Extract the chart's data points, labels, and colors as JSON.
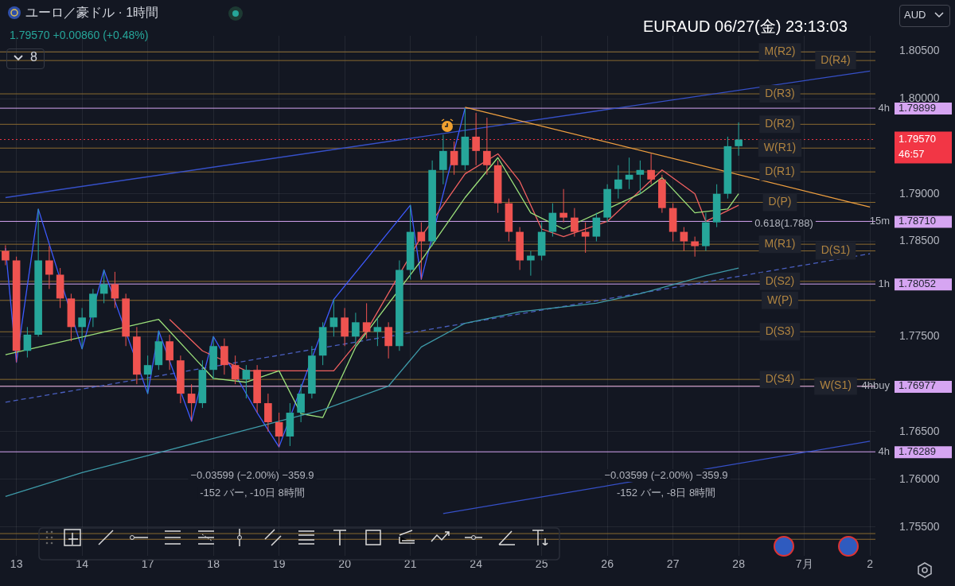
{
  "chart_data": {
    "type": "candlestick",
    "title": "ユーロ／豪ドル · 1時間",
    "subtitle": "1.79570 +0.00860 (+0.48%)",
    "categories": [
      null,
      "13",
      null,
      null,
      null,
      null,
      null,
      "14",
      null,
      null,
      null,
      null,
      null,
      "17",
      null,
      null,
      null,
      null,
      null,
      "18",
      null,
      null,
      null,
      null,
      null,
      "19",
      null,
      null,
      null,
      null,
      null,
      "20",
      null,
      null,
      null,
      null,
      null,
      "21",
      null,
      null,
      null,
      null,
      null,
      "24",
      null,
      null,
      null,
      null,
      null,
      "25",
      null,
      null,
      null,
      null,
      null,
      "26",
      null,
      null,
      null,
      null,
      null,
      "27",
      null,
      null,
      null,
      null,
      null,
      "28",
      null,
      null,
      null,
      null,
      null,
      "7月",
      null,
      null,
      null,
      null,
      null,
      "2"
    ],
    "ohlc": [
      [
        1.784,
        1.7846,
        1.7825,
        1.783
      ],
      [
        1.783,
        1.7834,
        1.7723,
        1.7735
      ],
      [
        1.7735,
        1.776,
        1.7728,
        1.7752
      ],
      [
        1.7752,
        1.7884,
        1.775,
        1.783
      ],
      [
        1.783,
        1.7845,
        1.78,
        1.7815
      ],
      [
        1.7815,
        1.7822,
        1.778,
        1.779
      ],
      [
        1.779,
        1.7795,
        1.7745,
        1.776
      ],
      [
        1.776,
        1.778,
        1.7737,
        1.777
      ],
      [
        1.777,
        1.78,
        1.776,
        1.7795
      ],
      [
        1.7795,
        1.782,
        1.7785,
        1.7805
      ],
      [
        1.7805,
        1.7818,
        1.778,
        1.779
      ],
      [
        1.779,
        1.7795,
        1.774,
        1.775
      ],
      [
        1.775,
        1.776,
        1.77,
        1.771
      ],
      [
        1.771,
        1.773,
        1.769,
        1.772
      ],
      [
        1.772,
        1.7756,
        1.7715,
        1.7745
      ],
      [
        1.7745,
        1.7752,
        1.7715,
        1.7725
      ],
      [
        1.7725,
        1.773,
        1.768,
        1.769
      ],
      [
        1.769,
        1.77,
        1.7661,
        1.768
      ],
      [
        1.768,
        1.7725,
        1.7675,
        1.7715
      ],
      [
        1.7715,
        1.775,
        1.7705,
        1.774
      ],
      [
        1.774,
        1.7748,
        1.771,
        1.772
      ],
      [
        1.772,
        1.773,
        1.77,
        1.7705
      ],
      [
        1.7705,
        1.772,
        1.7685,
        1.7715
      ],
      [
        1.7715,
        1.772,
        1.767,
        1.768
      ],
      [
        1.768,
        1.769,
        1.765,
        1.766
      ],
      [
        1.766,
        1.767,
        1.7634,
        1.7645
      ],
      [
        1.7645,
        1.768,
        1.7635,
        1.767
      ],
      [
        1.767,
        1.77,
        1.766,
        1.769
      ],
      [
        1.769,
        1.774,
        1.7685,
        1.773
      ],
      [
        1.773,
        1.7765,
        1.772,
        1.776
      ],
      [
        1.776,
        1.7789,
        1.775,
        1.777
      ],
      [
        1.777,
        1.778,
        1.774,
        1.775
      ],
      [
        1.775,
        1.7775,
        1.774,
        1.7765
      ],
      [
        1.7765,
        1.7785,
        1.7748,
        1.7755
      ],
      [
        1.7755,
        1.777,
        1.774,
        1.776
      ],
      [
        1.776,
        1.7765,
        1.7727,
        1.774
      ],
      [
        1.774,
        1.783,
        1.7735,
        1.782
      ],
      [
        1.782,
        1.7888,
        1.781,
        1.786
      ],
      [
        1.786,
        1.787,
        1.781,
        1.785
      ],
      [
        1.785,
        1.7935,
        1.7845,
        1.7925
      ],
      [
        1.7925,
        1.7962,
        1.791,
        1.7945
      ],
      [
        1.7945,
        1.7955,
        1.792,
        1.793
      ],
      [
        1.793,
        1.799,
        1.7925,
        1.796
      ],
      [
        1.796,
        1.7985,
        1.793,
        1.7945
      ],
      [
        1.7945,
        1.798,
        1.792,
        1.793
      ],
      [
        1.793,
        1.7935,
        1.788,
        1.789
      ],
      [
        1.789,
        1.7895,
        1.785,
        1.786
      ],
      [
        1.786,
        1.7865,
        1.782,
        1.783
      ],
      [
        1.783,
        1.784,
        1.7814,
        1.7835
      ],
      [
        1.7835,
        1.787,
        1.783,
        1.786
      ],
      [
        1.786,
        1.789,
        1.7855,
        1.788
      ],
      [
        1.788,
        1.7905,
        1.787,
        1.7875
      ],
      [
        1.7875,
        1.7885,
        1.7855,
        1.786
      ],
      [
        1.786,
        1.787,
        1.7838,
        1.7855
      ],
      [
        1.7855,
        1.788,
        1.785,
        1.7875
      ],
      [
        1.7875,
        1.791,
        1.787,
        1.7905
      ],
      [
        1.7905,
        1.793,
        1.7895,
        1.7915
      ],
      [
        1.7915,
        1.7938,
        1.7905,
        1.792
      ],
      [
        1.792,
        1.7935,
        1.79,
        1.7925
      ],
      [
        1.7925,
        1.7942,
        1.791,
        1.7915
      ],
      [
        1.7915,
        1.792,
        1.788,
        1.7885
      ],
      [
        1.7885,
        1.789,
        1.785,
        1.786
      ],
      [
        1.786,
        1.7865,
        1.784,
        1.785
      ],
      [
        1.785,
        1.7855,
        1.7834,
        1.7845
      ],
      [
        1.7845,
        1.788,
        1.784,
        1.787
      ],
      [
        1.787,
        1.791,
        1.7865,
        1.79
      ],
      [
        1.79,
        1.796,
        1.7895,
        1.795
      ],
      [
        1.795,
        1.7975,
        1.794,
        1.7957
      ],
      null,
      null,
      null,
      null,
      null,
      null,
      null,
      null,
      null,
      null,
      null,
      null
    ],
    "colors": [
      "#ef5350",
      "#ef5350",
      "#26a69a",
      "#26a69a",
      "#ef5350",
      "#ef5350",
      "#ef5350",
      "#26a69a",
      "#26a69a",
      "#26a69a",
      "#ef5350",
      "#ef5350",
      "#ef5350",
      "#26a69a",
      "#26a69a",
      "#ef5350",
      "#ef5350",
      "#ef5350",
      "#26a69a",
      "#26a69a",
      "#ef5350",
      "#ef5350",
      "#26a69a",
      "#ef5350",
      "#ef5350",
      "#ef5350",
      "#26a69a",
      "#26a69a",
      "#26a69a",
      "#26a69a",
      "#26a69a",
      "#ef5350",
      "#26a69a",
      "#ef5350",
      "#26a69a",
      "#ef5350",
      "#26a69a",
      "#26a69a",
      "#ef5350",
      "#26a69a",
      "#26a69a",
      "#ef5350",
      "#26a69a",
      "#ef5350",
      "#ef5350",
      "#ef5350",
      "#ef5350",
      "#ef5350",
      "#26a69a",
      "#26a69a",
      "#26a69a",
      "#ef5350",
      "#ef5350",
      "#ef5350",
      "#26a69a",
      "#26a69a",
      "#26a69a",
      "#26a69a",
      "#26a69a",
      "#ef5350",
      "#ef5350",
      "#ef5350",
      "#ef5350",
      "#ef5350",
      "#26a69a",
      "#26a69a",
      "#26a69a",
      "#26a69a",
      null,
      null,
      null,
      null,
      null,
      null,
      null,
      null,
      null,
      null,
      null,
      null
    ],
    "series": [
      {
        "type": "line",
        "color": "#3e9aa8",
        "values": [
          1.7582,
          null,
          null,
          null,
          null,
          null,
          null,
          1.7607,
          null,
          null,
          null,
          null,
          null,
          null,
          1.7628,
          null,
          null,
          null,
          null,
          null,
          null,
          null,
          1.7652,
          null,
          null,
          null,
          null,
          null,
          null,
          1.7673,
          null,
          null,
          null,
          null,
          null,
          1.7698,
          null,
          null,
          1.7739,
          null,
          null,
          null,
          1.7764,
          null,
          null,
          null,
          null,
          1.7776,
          null,
          null,
          null,
          null,
          null,
          null,
          1.7785,
          null,
          null,
          null,
          1.7795,
          null,
          null,
          null,
          null,
          null,
          1.7814,
          null,
          null,
          1.7822,
          null,
          null,
          null,
          null,
          null,
          null,
          null,
          null,
          null,
          null,
          null,
          null
        ]
      },
      {
        "type": "line",
        "color": "#9be07a",
        "values": [
          1.7731,
          null,
          null,
          null,
          null,
          null,
          null,
          null,
          null,
          null,
          null,
          null,
          null,
          null,
          1.7768,
          null,
          null,
          null,
          null,
          1.7706,
          null,
          null,
          1.7702,
          null,
          null,
          1.7714,
          null,
          1.7669,
          null,
          1.7665,
          null,
          null,
          1.7739,
          null,
          null,
          null,
          null,
          null,
          1.783,
          null,
          null,
          null,
          1.7896,
          null,
          null,
          1.7938,
          null,
          null,
          1.788,
          null,
          null,
          1.7863,
          null,
          null,
          null,
          null,
          null,
          null,
          1.79,
          null,
          1.7917,
          null,
          null,
          1.788,
          null,
          null,
          1.7884,
          1.79,
          null,
          null,
          null,
          null,
          null,
          null,
          null,
          null,
          null,
          null,
          null,
          null
        ]
      },
      {
        "type": "line",
        "color": "#f06060",
        "values": [
          null,
          null,
          null,
          null,
          null,
          null,
          null,
          null,
          null,
          null,
          null,
          null,
          null,
          null,
          null,
          1.7768,
          null,
          null,
          1.7735,
          null,
          null,
          null,
          1.7714,
          null,
          1.7714,
          null,
          null,
          null,
          null,
          null,
          1.7714,
          null,
          null,
          1.7756,
          null,
          null,
          null,
          null,
          1.7855,
          null,
          null,
          null,
          1.7921,
          null,
          null,
          1.7942,
          null,
          1.7913,
          null,
          1.7863,
          null,
          1.7855,
          null,
          null,
          null,
          1.7871,
          null,
          null,
          null,
          null,
          1.7925,
          null,
          null,
          1.79,
          1.7871,
          null,
          null,
          1.7888,
          null,
          null,
          null,
          null,
          null,
          null,
          null,
          null,
          null,
          null,
          null,
          null
        ]
      },
      {
        "type": "line",
        "color": "#3d5afe",
        "values": [
          1.7843,
          1.7723,
          null,
          1.7884,
          null,
          null,
          null,
          1.7737,
          null,
          1.782,
          null,
          null,
          null,
          1.769,
          1.7756,
          null,
          null,
          1.7661,
          null,
          1.775,
          null,
          null,
          null,
          1.767,
          null,
          1.7634,
          null,
          null,
          null,
          null,
          1.7789,
          null,
          null,
          null,
          null,
          null,
          null,
          1.7888,
          1.781,
          null,
          null,
          null,
          1.799,
          null,
          null,
          null,
          null,
          null,
          null,
          null,
          null,
          null,
          null,
          null,
          null,
          null,
          null,
          null,
          null,
          null,
          null,
          null,
          null,
          null,
          null,
          null,
          null,
          null,
          null,
          null,
          null,
          null,
          null,
          null,
          null,
          null,
          null,
          null,
          null,
          null
        ]
      },
      {
        "type": "line",
        "color": "#f0a040",
        "values": [
          null,
          null,
          null,
          null,
          null,
          null,
          null,
          null,
          null,
          null,
          null,
          null,
          null,
          null,
          null,
          null,
          null,
          null,
          null,
          null,
          null,
          null,
          null,
          null,
          null,
          null,
          null,
          null,
          null,
          null,
          null,
          null,
          null,
          null,
          null,
          null,
          null,
          null,
          null,
          null,
          null,
          null,
          1.7991,
          null,
          null,
          null,
          null,
          null,
          null,
          null,
          null,
          null,
          null,
          null,
          null,
          null,
          null,
          null,
          null,
          null,
          null,
          null,
          null,
          null,
          null,
          null,
          null,
          null,
          null,
          null,
          null,
          null,
          null,
          null,
          null,
          null,
          null,
          null,
          null,
          1.7886
        ]
      },
      {
        "type": "line",
        "color": "#3650c8",
        "values": [
          1.7896,
          null,
          null,
          null,
          null,
          null,
          null,
          null,
          null,
          null,
          null,
          null,
          null,
          null,
          null,
          null,
          null,
          null,
          null,
          null,
          null,
          null,
          null,
          null,
          null,
          null,
          null,
          null,
          null,
          null,
          null,
          null,
          null,
          null,
          null,
          null,
          null,
          null,
          null,
          null,
          null,
          null,
          null,
          null,
          null,
          null,
          null,
          null,
          null,
          null,
          null,
          null,
          null,
          null,
          null,
          null,
          null,
          null,
          null,
          null,
          null,
          null,
          null,
          null,
          null,
          null,
          null,
          null,
          null,
          null,
          null,
          null,
          null,
          null,
          null,
          null,
          null,
          null,
          null,
          1.8029
        ]
      },
      {
        "type": "line",
        "color": "#3650c8",
        "values": [
          null,
          null,
          null,
          null,
          null,
          null,
          null,
          null,
          null,
          null,
          null,
          null,
          null,
          null,
          null,
          null,
          null,
          null,
          null,
          null,
          null,
          null,
          null,
          null,
          null,
          null,
          null,
          null,
          null,
          null,
          null,
          null,
          null,
          null,
          null,
          null,
          null,
          null,
          null,
          null,
          1.7564,
          null,
          null,
          null,
          null,
          null,
          null,
          null,
          null,
          null,
          null,
          null,
          null,
          null,
          null,
          null,
          null,
          null,
          null,
          null,
          null,
          null,
          null,
          null,
          null,
          null,
          null,
          null,
          null,
          null,
          null,
          null,
          null,
          null,
          null,
          null,
          null,
          null,
          null,
          1.764
        ]
      },
      {
        "type": "line",
        "color": "#4a5fc0",
        "line_style": "dashed",
        "values": [
          1.7681,
          null,
          null,
          null,
          null,
          null,
          null,
          null,
          null,
          null,
          null,
          null,
          null,
          null,
          null,
          null,
          null,
          null,
          null,
          null,
          null,
          null,
          null,
          null,
          null,
          null,
          null,
          null,
          null,
          null,
          null,
          null,
          null,
          null,
          null,
          null,
          null,
          null,
          null,
          null,
          null,
          null,
          null,
          null,
          null,
          null,
          null,
          null,
          null,
          null,
          null,
          null,
          null,
          null,
          null,
          null,
          null,
          null,
          null,
          null,
          null,
          null,
          null,
          null,
          null,
          null,
          null,
          null,
          null,
          null,
          null,
          null,
          null,
          null,
          null,
          null,
          null,
          null,
          null,
          1.7837
        ]
      }
    ],
    "ylim": [
      1.752,
      1.8066
    ],
    "yticks": [
      {
        "value": 1.755,
        "label": "1.75500"
      },
      {
        "value": 1.76,
        "label": "1.76000"
      },
      {
        "value": 1.765,
        "label": "1.76500"
      },
      {
        "value": 1.775,
        "label": "1.77500"
      },
      {
        "value": 1.785,
        "label": "1.78500"
      },
      {
        "value": 1.79,
        "label": "1.79000"
      },
      {
        "value": 1.8,
        "label": "1.80000"
      },
      {
        "value": 1.805,
        "label": "1.80500"
      }
    ],
    "grid": true,
    "marker": "none",
    "ref_lines": [
      {
        "axis": "y",
        "value": 1.8049,
        "label": "M(R2)",
        "color": "#8a6a30"
      },
      {
        "axis": "y",
        "value": 1.804,
        "label": "D(R4)",
        "color": "#8a6a30"
      },
      {
        "axis": "y",
        "value": 1.8005,
        "label": "D(R3)",
        "color": "#8a6a30"
      },
      {
        "axis": "y",
        "value": 1.7973,
        "label": "D(R2)",
        "color": "#8a6a30"
      },
      {
        "axis": "y",
        "value": 1.7948,
        "label": "W(R1)",
        "color": "#8a6a30"
      },
      {
        "axis": "y",
        "value": 1.7923,
        "label": "D(R1)",
        "color": "#8a6a30"
      },
      {
        "axis": "y",
        "value": 1.7891,
        "label": "D(P)",
        "color": "#8a6a30"
      },
      {
        "axis": "y",
        "value": 1.7847,
        "label": "M(R1)",
        "color": "#8a6a30"
      },
      {
        "axis": "y",
        "value": 1.784,
        "label": "D(S1)",
        "color": "#8a6a30"
      },
      {
        "axis": "y",
        "value": 1.7808,
        "label": "D(S2)",
        "color": "#8a6a30"
      },
      {
        "axis": "y",
        "value": 1.7788,
        "label": "W(P)",
        "color": "#8a6a30"
      },
      {
        "axis": "y",
        "value": 1.7755,
        "label": "D(S3)",
        "color": "#8a6a30"
      },
      {
        "axis": "y",
        "value": 1.7705,
        "label": "D(S4)",
        "color": "#8a6a30"
      },
      {
        "axis": "y",
        "value": 1.7698,
        "label": "W(S1)",
        "color": "#8a6a30"
      },
      {
        "axis": "y",
        "value": 1.7543,
        "color": "#8a6a30"
      },
      {
        "axis": "y",
        "value": 1.7537,
        "color": "#8a6a30"
      },
      {
        "axis": "y",
        "value": 1.79899,
        "label": "4h",
        "color": "#d6a5f2"
      },
      {
        "axis": "y",
        "value": 1.7871,
        "label": "15m",
        "color": "#d6a5f2"
      },
      {
        "axis": "y",
        "value": 1.78052,
        "label": "1h",
        "color": "#d6a5f2"
      },
      {
        "axis": "y",
        "value": 1.76977,
        "label": "4hbuy",
        "color": "#d6a5f2"
      },
      {
        "axis": "y",
        "value": 1.76289,
        "label": "4h",
        "color": "#d6a5f2"
      },
      {
        "axis": "y",
        "value": 1.7957,
        "color": "#f23645",
        "line_style": "dotted"
      }
    ],
    "annotations": [
      "EURAUD   06/27(金)   23:13:03",
      "AUD",
      "8",
      "46:57",
      "−0.03599 (−2.00%) −359.9",
      "-152 バー, -10日 8時間",
      "−0.03599 (−2.00%) −359.9",
      "-152 バー, -8日 8時間",
      "0.618(1.788)",
      "1.79899",
      "1.78710",
      "1.78052",
      "1.76977",
      "1.76289",
      "1.79570"
    ]
  }
}
